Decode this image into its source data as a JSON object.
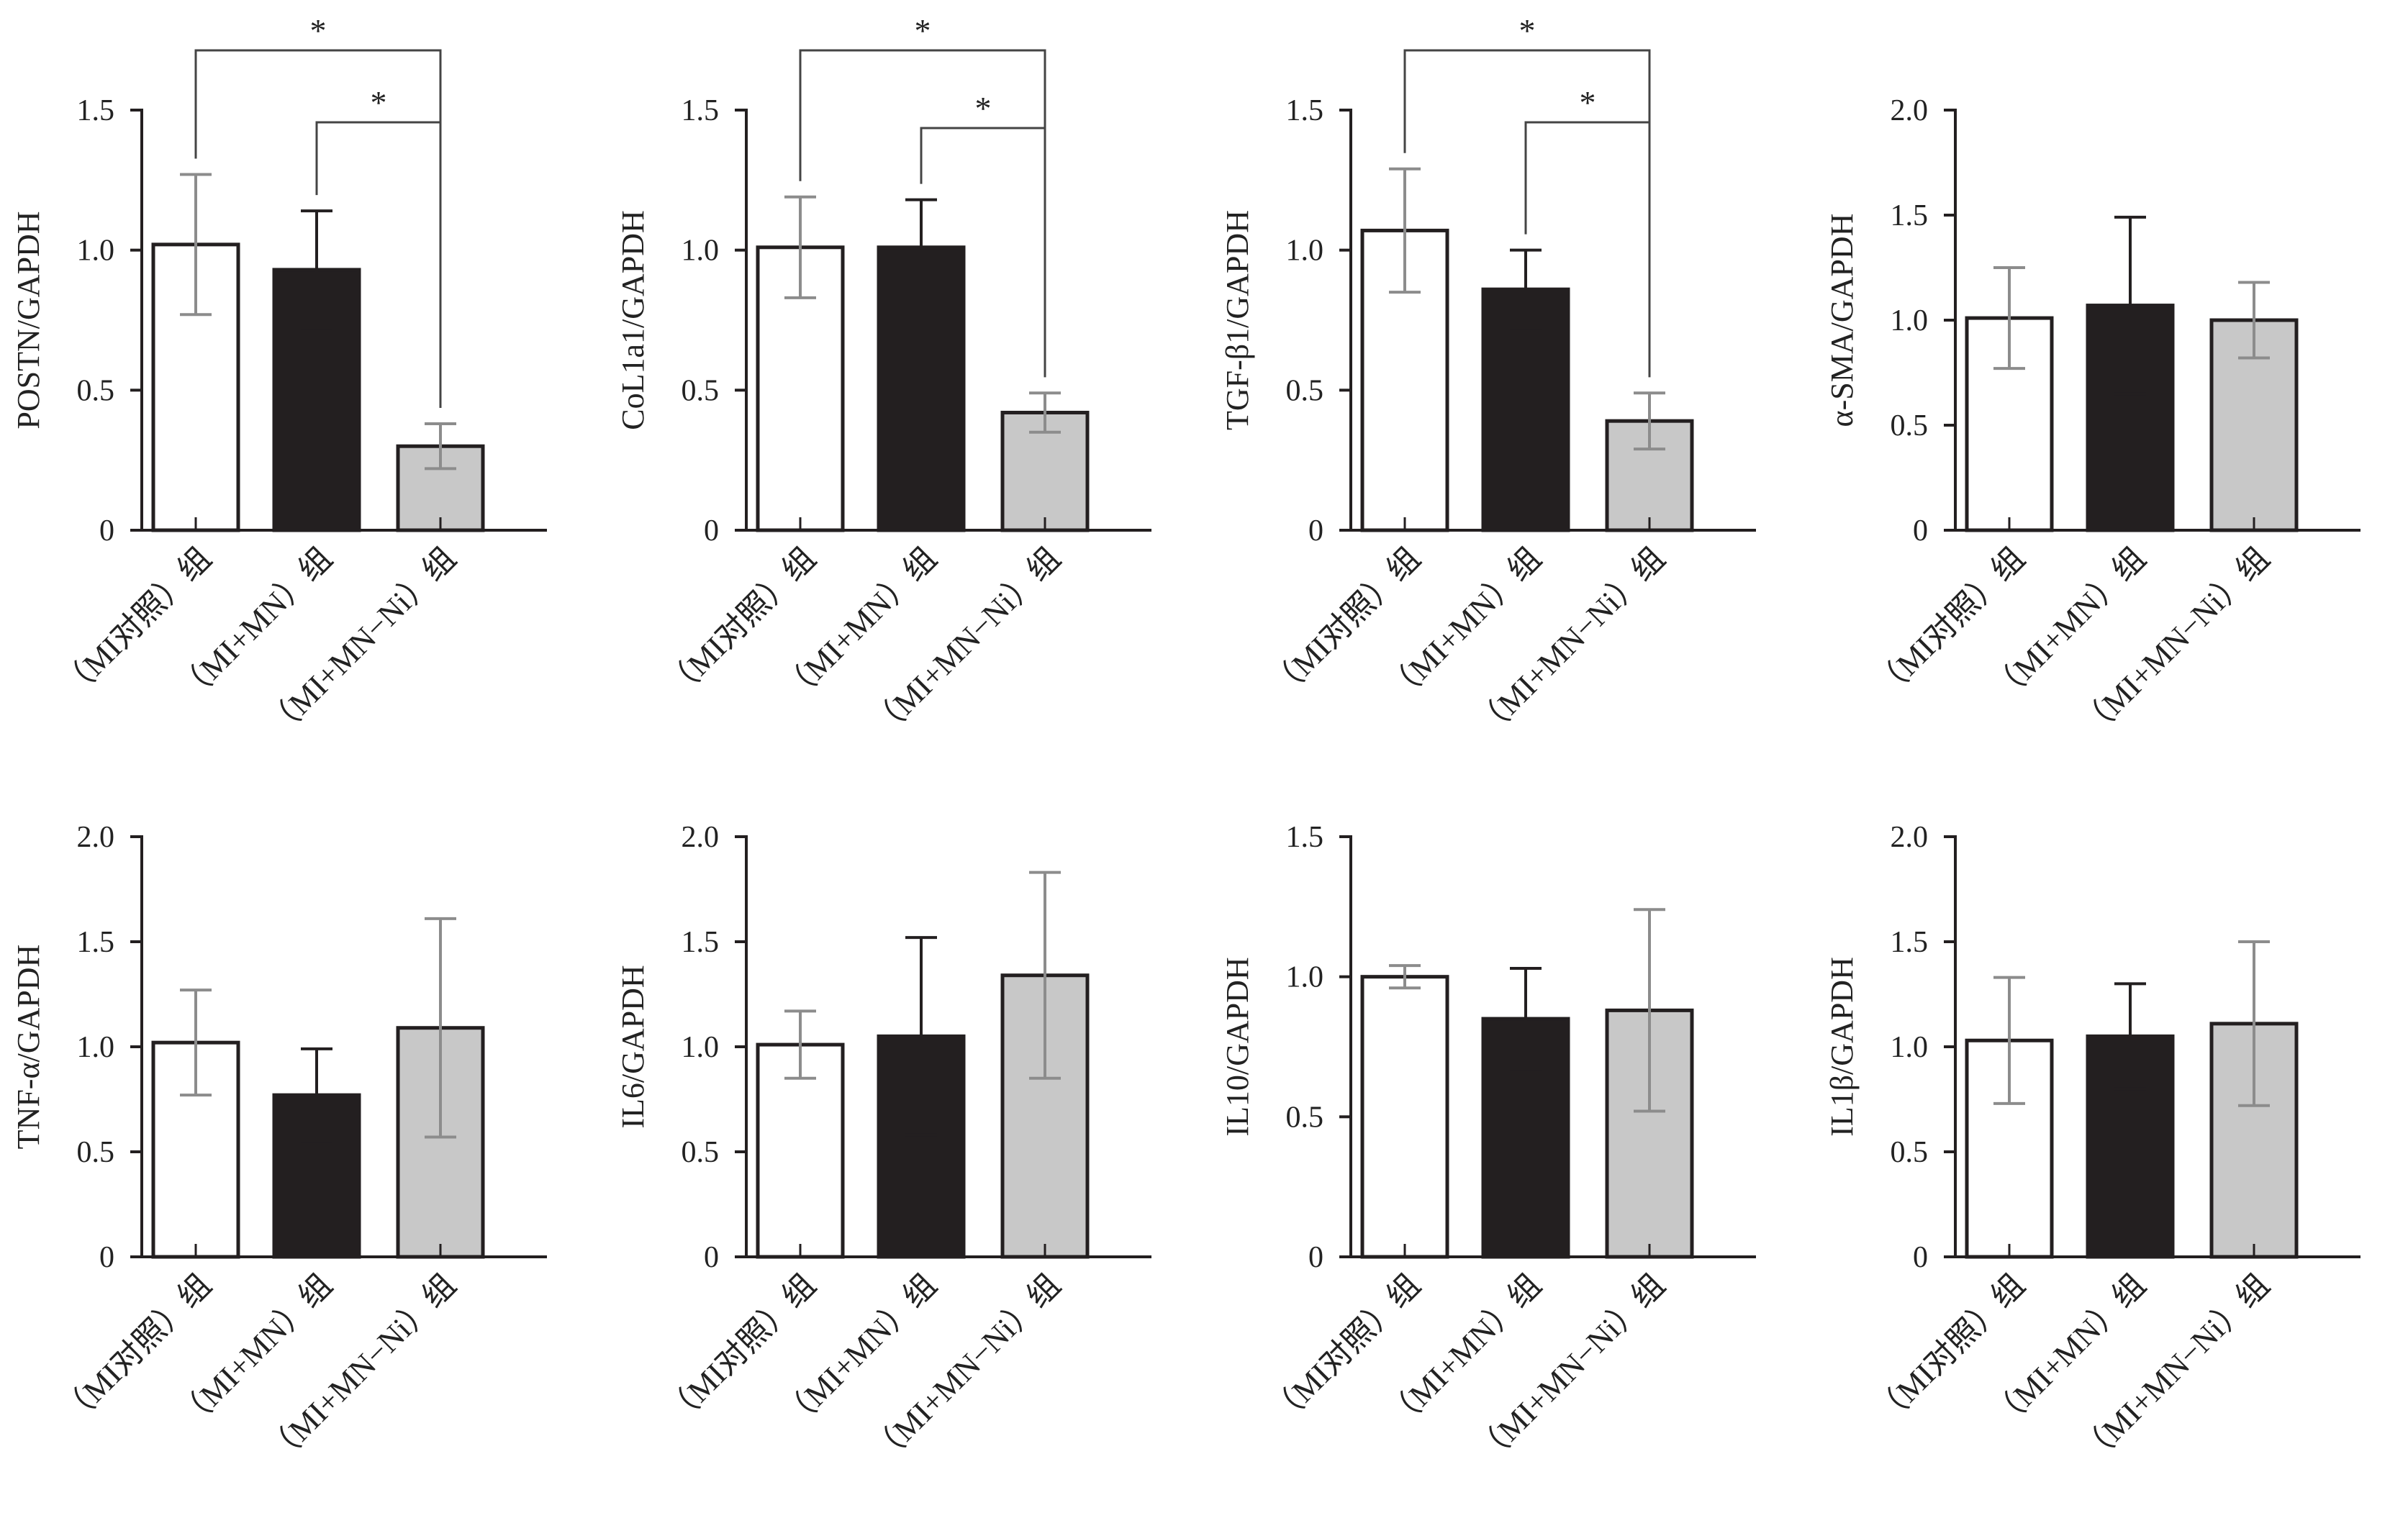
{
  "categories": [
    "（MI对照）组",
    "（MI+MN）组",
    "（MI+MN−Ni）组"
  ],
  "colors": {
    "control": "#ffffff",
    "mn": "#231f20",
    "mn_ni": "#c8c8c8",
    "stroke": "#231f20",
    "error_light": "#8c8c8c",
    "error_dark": "#231f20",
    "bracket": "#444444"
  },
  "chart_data": [
    {
      "type": "bar",
      "ylabel": "POSTN/GAPDH",
      "ylim": [
        0,
        1.5
      ],
      "ticks": [
        "0",
        "0.5",
        "1.0",
        "1.5"
      ],
      "values": [
        1.02,
        0.93,
        0.3
      ],
      "errors": [
        0.25,
        0.21,
        0.08
      ],
      "significance": [
        {
          "from": 0,
          "to": 2,
          "label": "*"
        },
        {
          "from": 1,
          "to": 2,
          "label": "*"
        }
      ]
    },
    {
      "type": "bar",
      "ylabel": "CoL1a1/GAPDH",
      "ylim": [
        0,
        1.5
      ],
      "ticks": [
        "0",
        "0.5",
        "1.0",
        "1.5"
      ],
      "values": [
        1.01,
        1.01,
        0.42
      ],
      "errors": [
        0.18,
        0.17,
        0.07
      ],
      "significance": [
        {
          "from": 0,
          "to": 2,
          "label": "*"
        },
        {
          "from": 1,
          "to": 2,
          "label": "*"
        }
      ]
    },
    {
      "type": "bar",
      "ylabel": "TGF-β1/GAPDH",
      "ylim": [
        0,
        1.5
      ],
      "ticks": [
        "0",
        "0.5",
        "1.0",
        "1.5"
      ],
      "values": [
        1.07,
        0.86,
        0.39
      ],
      "errors": [
        0.22,
        0.14,
        0.1
      ],
      "significance": [
        {
          "from": 0,
          "to": 2,
          "label": "*"
        },
        {
          "from": 1,
          "to": 2,
          "label": "*"
        }
      ]
    },
    {
      "type": "bar",
      "ylabel": "α-SMA/GAPDH",
      "ylim": [
        0,
        2.0
      ],
      "ticks": [
        "0",
        "0.5",
        "1.0",
        "1.5",
        "2.0"
      ],
      "values": [
        1.01,
        1.07,
        1.0
      ],
      "errors": [
        0.24,
        0.42,
        0.18
      ],
      "significance": []
    },
    {
      "type": "bar",
      "ylabel": "TNF-α/GAPDH",
      "ylim": [
        0,
        2.0
      ],
      "ticks": [
        "0",
        "0.5",
        "1.0",
        "1.5",
        "2.0"
      ],
      "values": [
        1.02,
        0.77,
        1.09
      ],
      "errors": [
        0.25,
        0.22,
        0.52
      ],
      "significance": []
    },
    {
      "type": "bar",
      "ylabel": "IL6/GAPDH",
      "ylim": [
        0,
        2.0
      ],
      "ticks": [
        "0",
        "0.5",
        "1.0",
        "1.5",
        "2.0"
      ],
      "values": [
        1.01,
        1.05,
        1.34
      ],
      "errors": [
        0.16,
        0.47,
        0.49
      ],
      "significance": []
    },
    {
      "type": "bar",
      "ylabel": "IL10/GAPDH",
      "ylim": [
        0,
        1.5
      ],
      "ticks": [
        "0",
        "0.5",
        "1.0",
        "1.5"
      ],
      "values": [
        1.0,
        0.85,
        0.88
      ],
      "errors": [
        0.04,
        0.18,
        0.36
      ],
      "significance": []
    },
    {
      "type": "bar",
      "ylabel": "IL1β/GAPDH",
      "ylim": [
        0,
        2.0
      ],
      "ticks": [
        "0",
        "0.5",
        "1.0",
        "1.5",
        "2.0"
      ],
      "values": [
        1.03,
        1.05,
        1.11
      ],
      "errors": [
        0.3,
        0.25,
        0.39
      ],
      "significance": []
    }
  ]
}
